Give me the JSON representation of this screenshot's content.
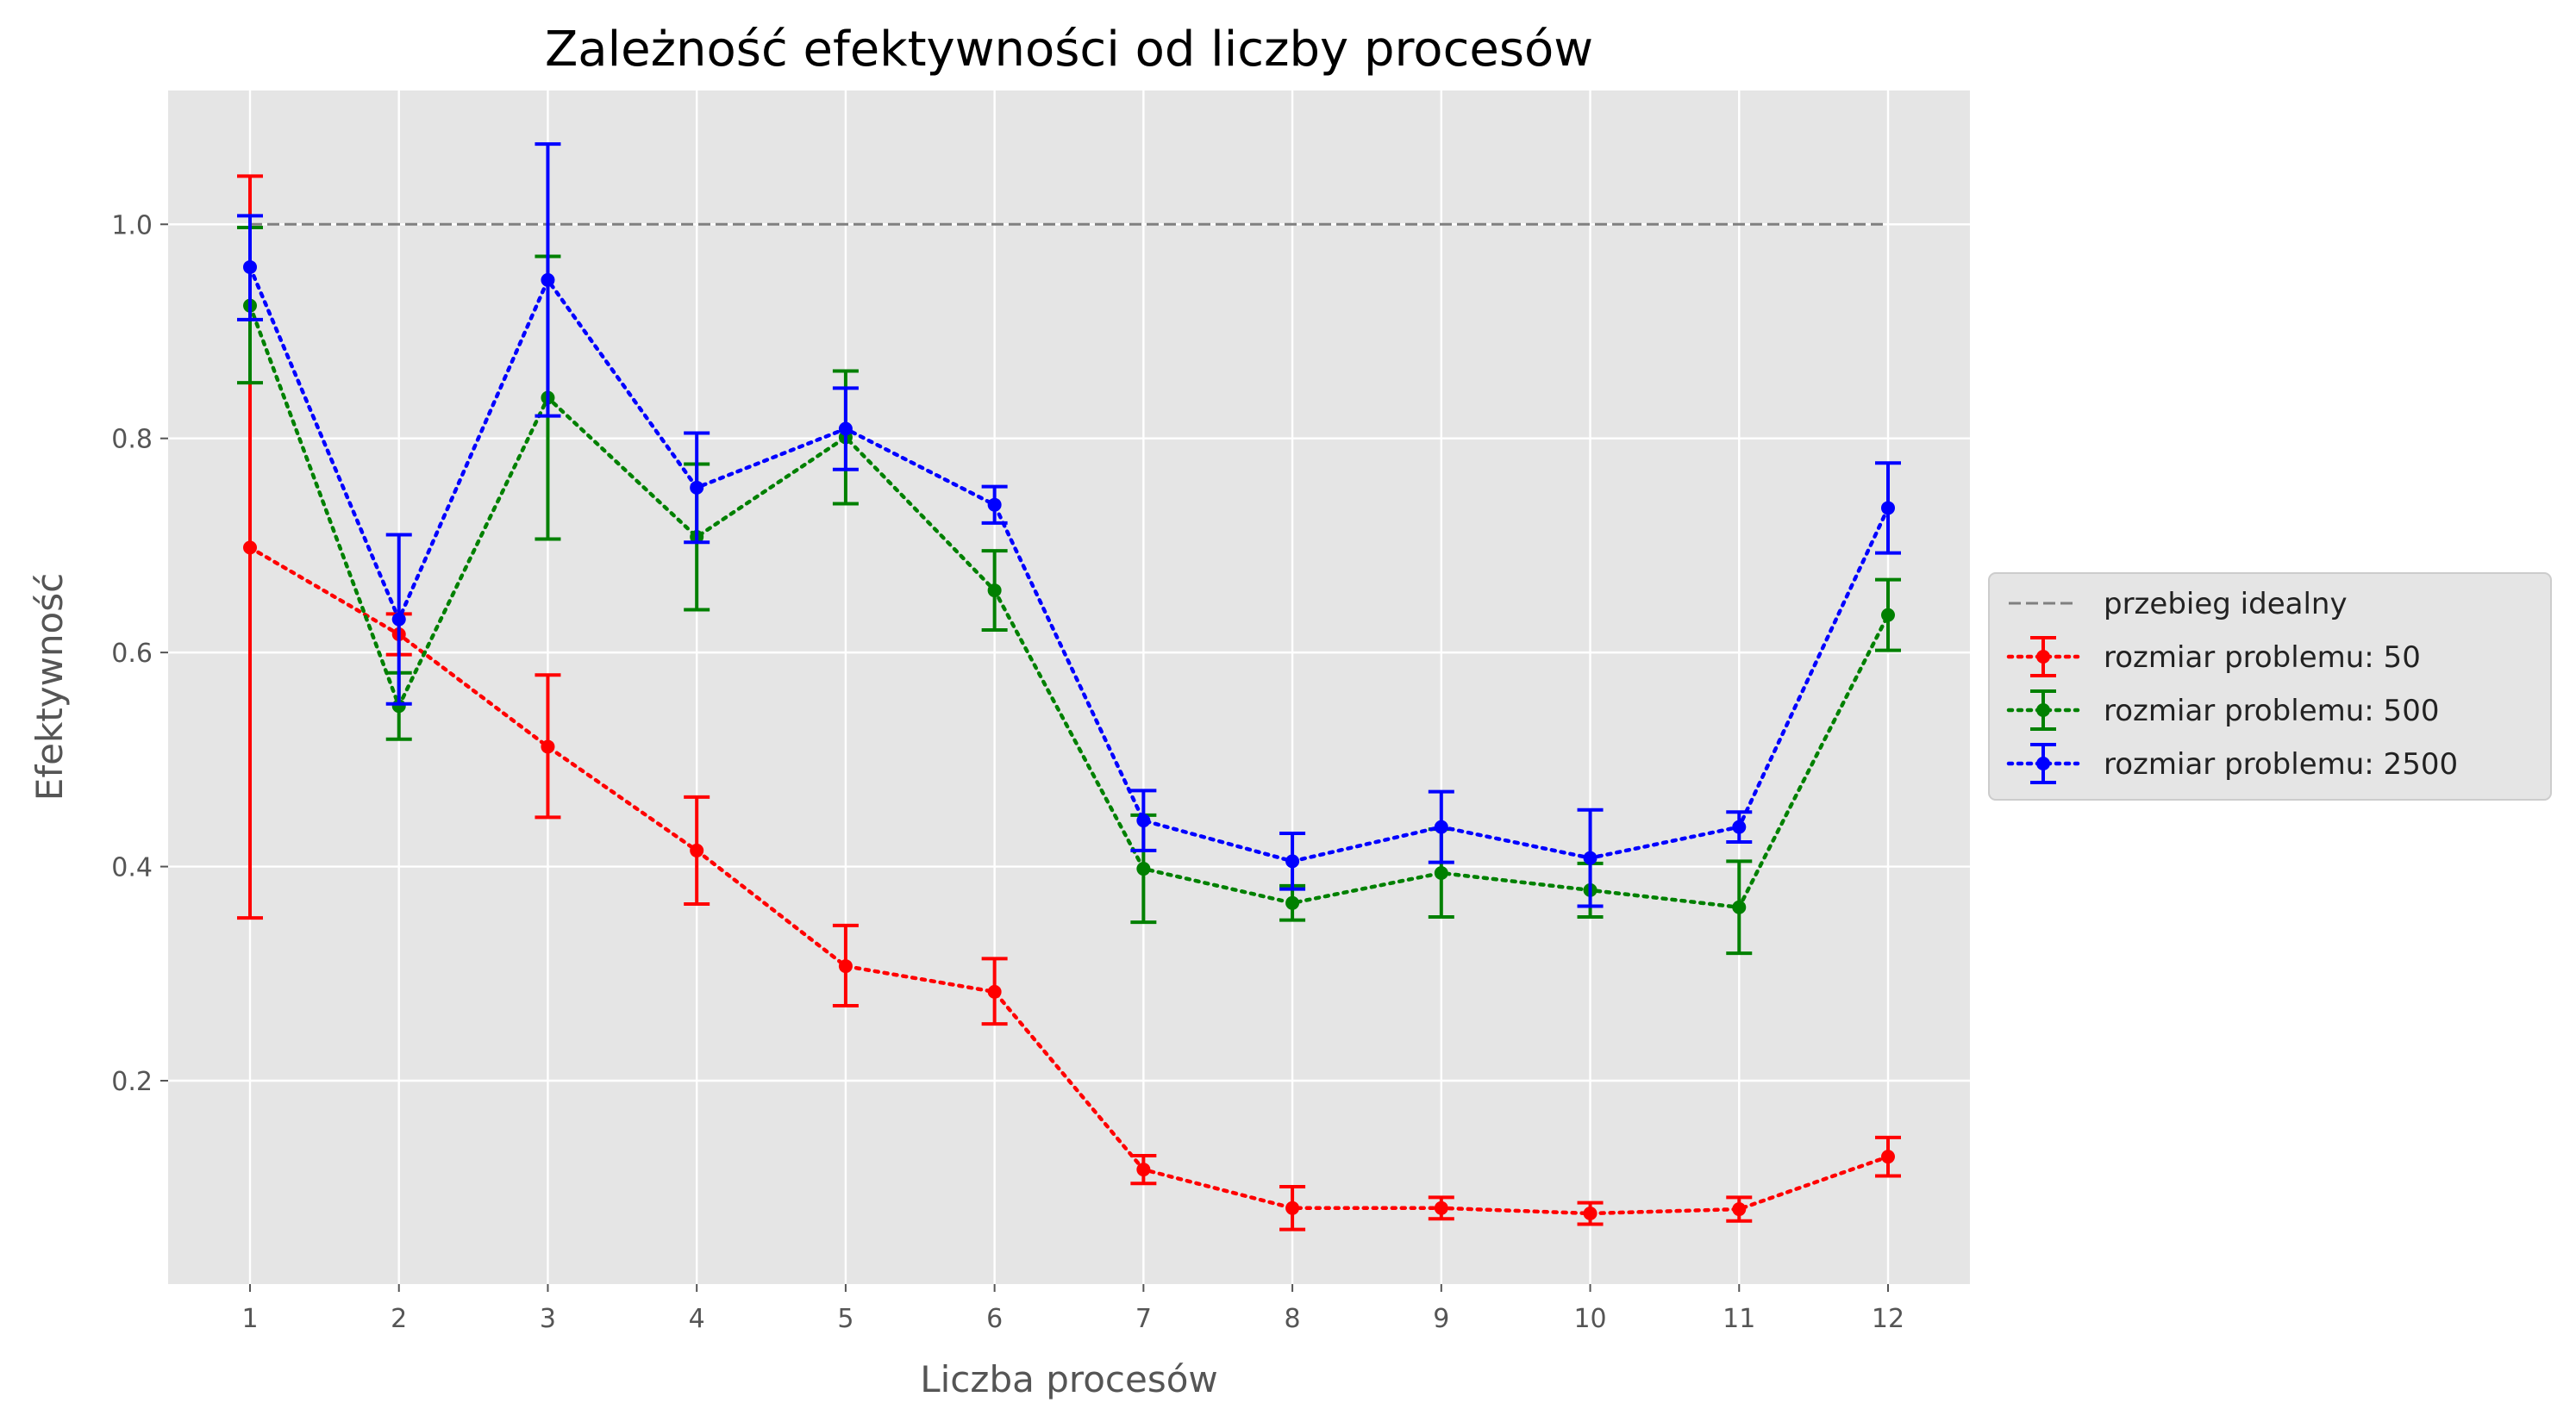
{
  "chart_data": {
    "type": "line",
    "title": "Zależność efektywności od liczby procesów",
    "xlabel": "Liczba procesów",
    "ylabel": "Efektywność",
    "x": [
      1,
      2,
      3,
      4,
      5,
      6,
      7,
      8,
      9,
      10,
      11,
      12
    ],
    "x_tick_labels": [
      "1",
      "2",
      "3",
      "4",
      "5",
      "6",
      "7",
      "8",
      "9",
      "10",
      "11",
      "12"
    ],
    "y_ticks": [
      0.2,
      0.4,
      0.6,
      0.8,
      1.0
    ],
    "y_tick_labels": [
      "0.2",
      "0.4",
      "0.6",
      "0.8",
      "1.0"
    ],
    "xlim": [
      0.45,
      12.55
    ],
    "ylim": [
      0.01,
      1.125
    ],
    "grid": true,
    "legend_position": "right-outside",
    "ideal": {
      "name": "przebieg idealny",
      "y": 1.0,
      "color": "#808080",
      "style": "dashed"
    },
    "series": [
      {
        "name": "rozmiar problemu: 50",
        "color": "#ff0000",
        "values": [
          0.698,
          0.617,
          0.512,
          0.415,
          0.307,
          0.283,
          0.117,
          0.081,
          0.081,
          0.076,
          0.08,
          0.129
        ],
        "err_low": [
          0.352,
          0.598,
          0.446,
          0.365,
          0.27,
          0.253,
          0.104,
          0.061,
          0.071,
          0.066,
          0.069,
          0.111
        ],
        "err_high": [
          1.045,
          0.636,
          0.579,
          0.465,
          0.345,
          0.314,
          0.13,
          0.101,
          0.091,
          0.086,
          0.091,
          0.147
        ]
      },
      {
        "name": "rozmiar problemu: 500",
        "color": "#008000",
        "values": [
          0.924,
          0.55,
          0.838,
          0.708,
          0.801,
          0.658,
          0.398,
          0.366,
          0.394,
          0.378,
          0.362,
          0.635
        ],
        "err_low": [
          0.852,
          0.519,
          0.706,
          0.64,
          0.739,
          0.621,
          0.348,
          0.35,
          0.353,
          0.353,
          0.319,
          0.602
        ],
        "err_high": [
          0.997,
          0.581,
          0.97,
          0.776,
          0.863,
          0.695,
          0.448,
          0.382,
          0.435,
          0.403,
          0.405,
          0.668
        ]
      },
      {
        "name": "rozmiar problemu: 2500",
        "color": "#0000ff",
        "values": [
          0.96,
          0.631,
          0.948,
          0.754,
          0.809,
          0.738,
          0.443,
          0.405,
          0.437,
          0.408,
          0.437,
          0.735
        ],
        "err_low": [
          0.911,
          0.552,
          0.821,
          0.703,
          0.771,
          0.721,
          0.415,
          0.379,
          0.404,
          0.363,
          0.423,
          0.693
        ],
        "err_high": [
          1.008,
          0.71,
          1.075,
          0.805,
          0.847,
          0.755,
          0.471,
          0.431,
          0.47,
          0.453,
          0.451,
          0.777
        ]
      }
    ]
  }
}
